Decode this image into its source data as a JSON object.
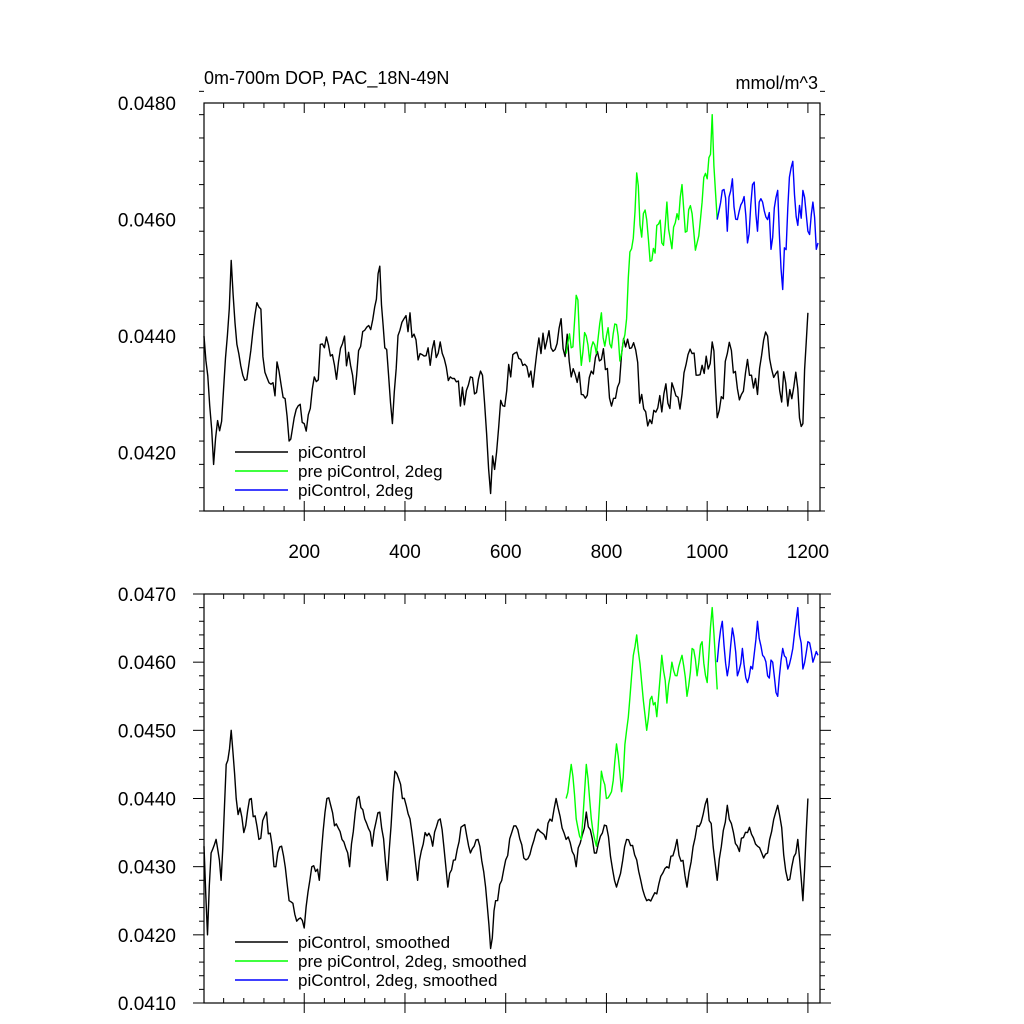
{
  "chart_data": [
    {
      "type": "line",
      "title": "0m-700m DOP, PAC_18N-49N",
      "units": "mmol/m^3",
      "xlim": [
        1,
        1224
      ],
      "ylim": [
        0.041,
        0.048
      ],
      "x_ticks": [
        200,
        400,
        600,
        800,
        1000,
        1200
      ],
      "x_tick_labels": [
        "200",
        "400",
        "600",
        "800",
        "1000",
        "1200"
      ],
      "y_ticks": [
        0.042,
        0.044,
        0.046,
        0.048
      ],
      "y_tick_labels": [
        "0.0420",
        "0.0440",
        "0.0460",
        "0.0480"
      ],
      "grid": false,
      "legend_position": "bottom-left",
      "series": [
        {
          "name": "piControl",
          "color": "#000000",
          "x": [
            1,
            20,
            40,
            55,
            70,
            90,
            110,
            130,
            150,
            170,
            180,
            200,
            220,
            240,
            260,
            280,
            300,
            320,
            340,
            350,
            360,
            375,
            390,
            410,
            430,
            450,
            470,
            490,
            510,
            530,
            550,
            570,
            590,
            610,
            630,
            650,
            670,
            690,
            710,
            730,
            750,
            770,
            790,
            810,
            830,
            850,
            870,
            890,
            910,
            930,
            950,
            970,
            990,
            1010,
            1020,
            1040,
            1060,
            1080,
            1100,
            1120,
            1140,
            1160,
            1180,
            1190,
            1200
          ],
          "values": [
            0.044,
            0.0418,
            0.0431,
            0.0453,
            0.0437,
            0.0435,
            0.0445,
            0.0432,
            0.0434,
            0.0422,
            0.0426,
            0.0425,
            0.0433,
            0.0438,
            0.0435,
            0.044,
            0.043,
            0.0441,
            0.0445,
            0.0452,
            0.0438,
            0.0425,
            0.0441,
            0.0444,
            0.0437,
            0.0435,
            0.0439,
            0.0433,
            0.0428,
            0.0433,
            0.0434,
            0.0413,
            0.0429,
            0.0433,
            0.0436,
            0.0434,
            0.0437,
            0.0438,
            0.0443,
            0.0433,
            0.043,
            0.0434,
            0.0436,
            0.0428,
            0.0437,
            0.0438,
            0.043,
            0.0425,
            0.0427,
            0.0432,
            0.043,
            0.0437,
            0.0435,
            0.0439,
            0.0426,
            0.0437,
            0.0431,
            0.0436,
            0.043,
            0.044,
            0.0434,
            0.0428,
            0.0431,
            0.0425,
            0.0444
          ]
        },
        {
          "name": "pre piControl, 2deg",
          "color": "#00ff00",
          "x": [
            720,
            730,
            740,
            750,
            760,
            770,
            780,
            790,
            800,
            810,
            820,
            830,
            840,
            850,
            860,
            870,
            880,
            890,
            900,
            910,
            920,
            930,
            940,
            950,
            960,
            970,
            980,
            990,
            1000,
            1010,
            1020
          ],
          "values": [
            0.0437,
            0.0438,
            0.0447,
            0.0435,
            0.044,
            0.0438,
            0.0437,
            0.0444,
            0.044,
            0.0438,
            0.0442,
            0.0437,
            0.0443,
            0.0455,
            0.0468,
            0.0457,
            0.046,
            0.0453,
            0.0459,
            0.0456,
            0.0463,
            0.0455,
            0.0461,
            0.0466,
            0.0458,
            0.0461,
            0.0456,
            0.0463,
            0.0467,
            0.0478,
            0.046
          ]
        },
        {
          "name": "piControl, 2deg",
          "color": "#0000ff",
          "x": [
            1020,
            1030,
            1040,
            1050,
            1060,
            1070,
            1080,
            1090,
            1100,
            1110,
            1120,
            1130,
            1140,
            1150,
            1160,
            1170,
            1180,
            1190,
            1200,
            1210,
            1220
          ],
          "values": [
            0.046,
            0.0465,
            0.0458,
            0.0467,
            0.046,
            0.0463,
            0.0456,
            0.0466,
            0.0458,
            0.0463,
            0.046,
            0.0457,
            0.0465,
            0.0448,
            0.0462,
            0.047,
            0.0459,
            0.0465,
            0.0458,
            0.0463,
            0.0456
          ]
        }
      ]
    },
    {
      "type": "line",
      "xlim": [
        1,
        1224
      ],
      "ylim": [
        0.041,
        0.047
      ],
      "x_ticks": [
        200,
        400,
        600,
        800,
        1000,
        1200
      ],
      "y_ticks": [
        0.041,
        0.042,
        0.043,
        0.044,
        0.045,
        0.046,
        0.047
      ],
      "y_tick_labels": [
        "0.0410",
        "0.0420",
        "0.0430",
        "0.0440",
        "0.0450",
        "0.0460",
        "0.0470"
      ],
      "grid": false,
      "legend_position": "bottom-left",
      "series": [
        {
          "name": "piControl, smoothed",
          "color": "#000000",
          "x": [
            1,
            8,
            15,
            25,
            35,
            45,
            55,
            65,
            80,
            95,
            110,
            125,
            140,
            155,
            170,
            185,
            200,
            215,
            230,
            245,
            260,
            275,
            290,
            305,
            320,
            335,
            350,
            365,
            380,
            395,
            410,
            425,
            440,
            455,
            470,
            485,
            500,
            515,
            530,
            545,
            560,
            570,
            580,
            600,
            620,
            640,
            660,
            680,
            700,
            720,
            740,
            760,
            780,
            800,
            820,
            840,
            860,
            880,
            900,
            920,
            940,
            960,
            980,
            1000,
            1020,
            1040,
            1060,
            1080,
            1100,
            1120,
            1140,
            1160,
            1180,
            1190,
            1200
          ],
          "values": [
            0.0433,
            0.042,
            0.0432,
            0.0434,
            0.0428,
            0.0445,
            0.045,
            0.044,
            0.0435,
            0.044,
            0.0434,
            0.0438,
            0.043,
            0.0433,
            0.0425,
            0.0422,
            0.0421,
            0.043,
            0.0428,
            0.044,
            0.0436,
            0.0434,
            0.043,
            0.044,
            0.0437,
            0.0433,
            0.0438,
            0.0428,
            0.0444,
            0.044,
            0.0437,
            0.0428,
            0.0435,
            0.0433,
            0.0437,
            0.0427,
            0.0431,
            0.0436,
            0.0432,
            0.0434,
            0.0427,
            0.0418,
            0.0425,
            0.0431,
            0.0436,
            0.0431,
            0.0435,
            0.0434,
            0.044,
            0.0434,
            0.043,
            0.0438,
            0.0432,
            0.0436,
            0.0427,
            0.0434,
            0.0431,
            0.0425,
            0.0426,
            0.043,
            0.0434,
            0.0427,
            0.0436,
            0.044,
            0.0428,
            0.0439,
            0.0433,
            0.0435,
            0.0433,
            0.0432,
            0.0439,
            0.0428,
            0.0434,
            0.0425,
            0.044
          ]
        },
        {
          "name": "pre piControl, 2deg, smoothed",
          "color": "#00ff00",
          "x": [
            720,
            730,
            740,
            750,
            760,
            770,
            780,
            790,
            800,
            810,
            820,
            830,
            840,
            850,
            860,
            870,
            880,
            890,
            900,
            910,
            920,
            930,
            940,
            950,
            960,
            970,
            980,
            990,
            1000,
            1010,
            1020
          ],
          "values": [
            0.044,
            0.0445,
            0.0437,
            0.0434,
            0.0445,
            0.0437,
            0.0433,
            0.0444,
            0.044,
            0.0441,
            0.0448,
            0.0441,
            0.045,
            0.0458,
            0.0464,
            0.0457,
            0.045,
            0.0455,
            0.0452,
            0.0461,
            0.0454,
            0.046,
            0.0458,
            0.0461,
            0.0455,
            0.0462,
            0.0458,
            0.0463,
            0.0457,
            0.0468,
            0.0456
          ]
        },
        {
          "name": "piControl, 2deg, smoothed",
          "color": "#0000ff",
          "x": [
            1020,
            1030,
            1040,
            1050,
            1060,
            1070,
            1080,
            1090,
            1100,
            1110,
            1120,
            1130,
            1140,
            1150,
            1160,
            1170,
            1180,
            1190,
            1200,
            1210,
            1220
          ],
          "values": [
            0.046,
            0.0466,
            0.0458,
            0.0465,
            0.0458,
            0.0462,
            0.0457,
            0.0459,
            0.0466,
            0.0461,
            0.0458,
            0.046,
            0.0455,
            0.0462,
            0.0459,
            0.0462,
            0.0468,
            0.0459,
            0.0463,
            0.046,
            0.0461
          ]
        }
      ]
    }
  ]
}
